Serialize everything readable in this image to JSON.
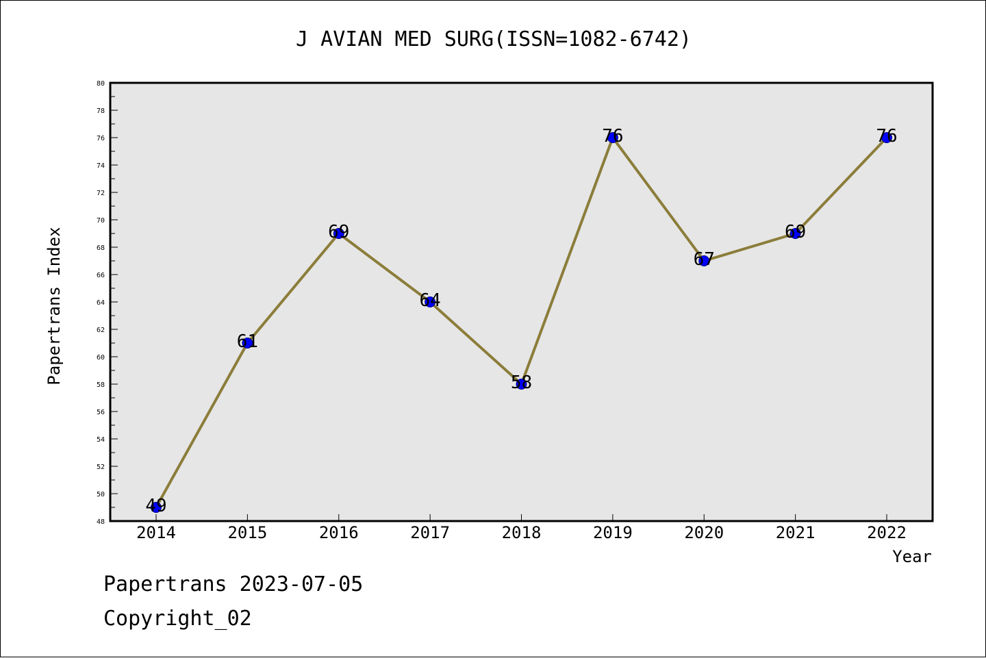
{
  "chart_data": {
    "type": "line",
    "title": "J AVIAN MED SURG(ISSN=1082-6742)",
    "xlabel": "Year",
    "ylabel": "Papertrans Index",
    "categories": [
      "2014",
      "2015",
      "2016",
      "2017",
      "2018",
      "2019",
      "2020",
      "2021",
      "2022"
    ],
    "values": [
      49,
      61,
      69,
      64,
      58,
      76,
      67,
      69,
      76
    ],
    "data_labels": [
      "49",
      "61",
      "69",
      "64",
      "58",
      "76",
      "67",
      "69",
      "76"
    ],
    "ylim": [
      48,
      80
    ],
    "yticks": [
      "48",
      "50",
      "52",
      "54",
      "56",
      "58",
      "60",
      "62",
      "64",
      "66",
      "68",
      "70",
      "72",
      "74",
      "76",
      "78",
      "80"
    ],
    "grid": false,
    "legend": "none",
    "colors": {
      "plot_background": "#e6e6e6",
      "line": "#8b7d3a",
      "marker": "#0000ff",
      "marker_edge": "#000080"
    }
  },
  "footer": {
    "line1": "Papertrans 2023-07-05",
    "line2": "Copyright_02"
  }
}
